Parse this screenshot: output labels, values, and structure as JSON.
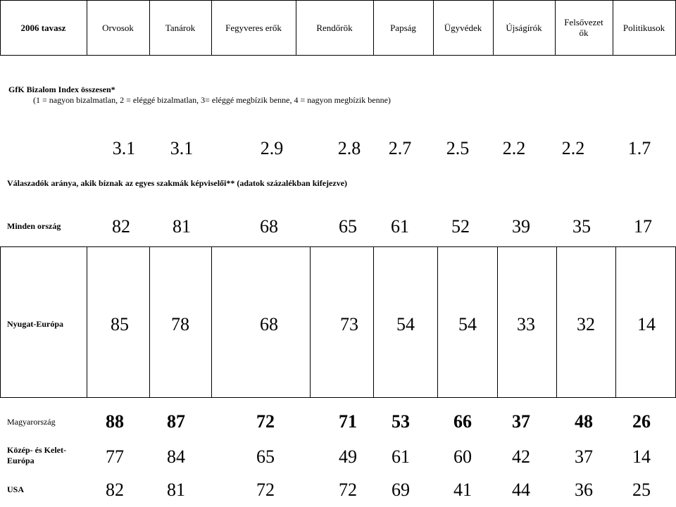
{
  "header": {
    "columns": [
      "2006 tavasz",
      "Orvosok",
      "Tanárok",
      "Fegyveres erők",
      "Rendőrök",
      "Papság",
      "Ügyvédek",
      "Újságírók",
      "Felsővezet ők",
      "Politikusok"
    ]
  },
  "index": {
    "title": "GfK Bizalom Index összesen*",
    "scale": "(1 = nagyon bizalmatlan, 2 = eléggé bizalmatlan, 3= eléggé megbízik benne, 4 = nagyon megbízik benne)",
    "values": [
      "3.1",
      "3.1",
      "2.9",
      "2.8",
      "2.7",
      "2.5",
      "2.2",
      "2.2",
      "1.7"
    ]
  },
  "section_title": "Válaszadók aránya, akik bíznak az egyes szakmák képviselői** (adatok százalékban kifejezve)",
  "rows": [
    {
      "label": "Minden ország",
      "values": [
        "82",
        "81",
        "68",
        "65",
        "61",
        "52",
        "39",
        "35",
        "17"
      ]
    },
    {
      "label": "Nyugat-Európa",
      "values": [
        "85",
        "78",
        "68",
        "73",
        "54",
        "54",
        "33",
        "32",
        "14"
      ]
    },
    {
      "label": "Magyarország",
      "values": [
        "88",
        "87",
        "72",
        "71",
        "53",
        "66",
        "37",
        "48",
        "26"
      ]
    },
    {
      "label": "Közép- és Kelet-Európa",
      "values": [
        "77",
        "84",
        "65",
        "49",
        "61",
        "60",
        "42",
        "37",
        "14"
      ]
    },
    {
      "label": "USA",
      "values": [
        "82",
        "81",
        "72",
        "72",
        "69",
        "41",
        "44",
        "36",
        "25"
      ]
    }
  ]
}
